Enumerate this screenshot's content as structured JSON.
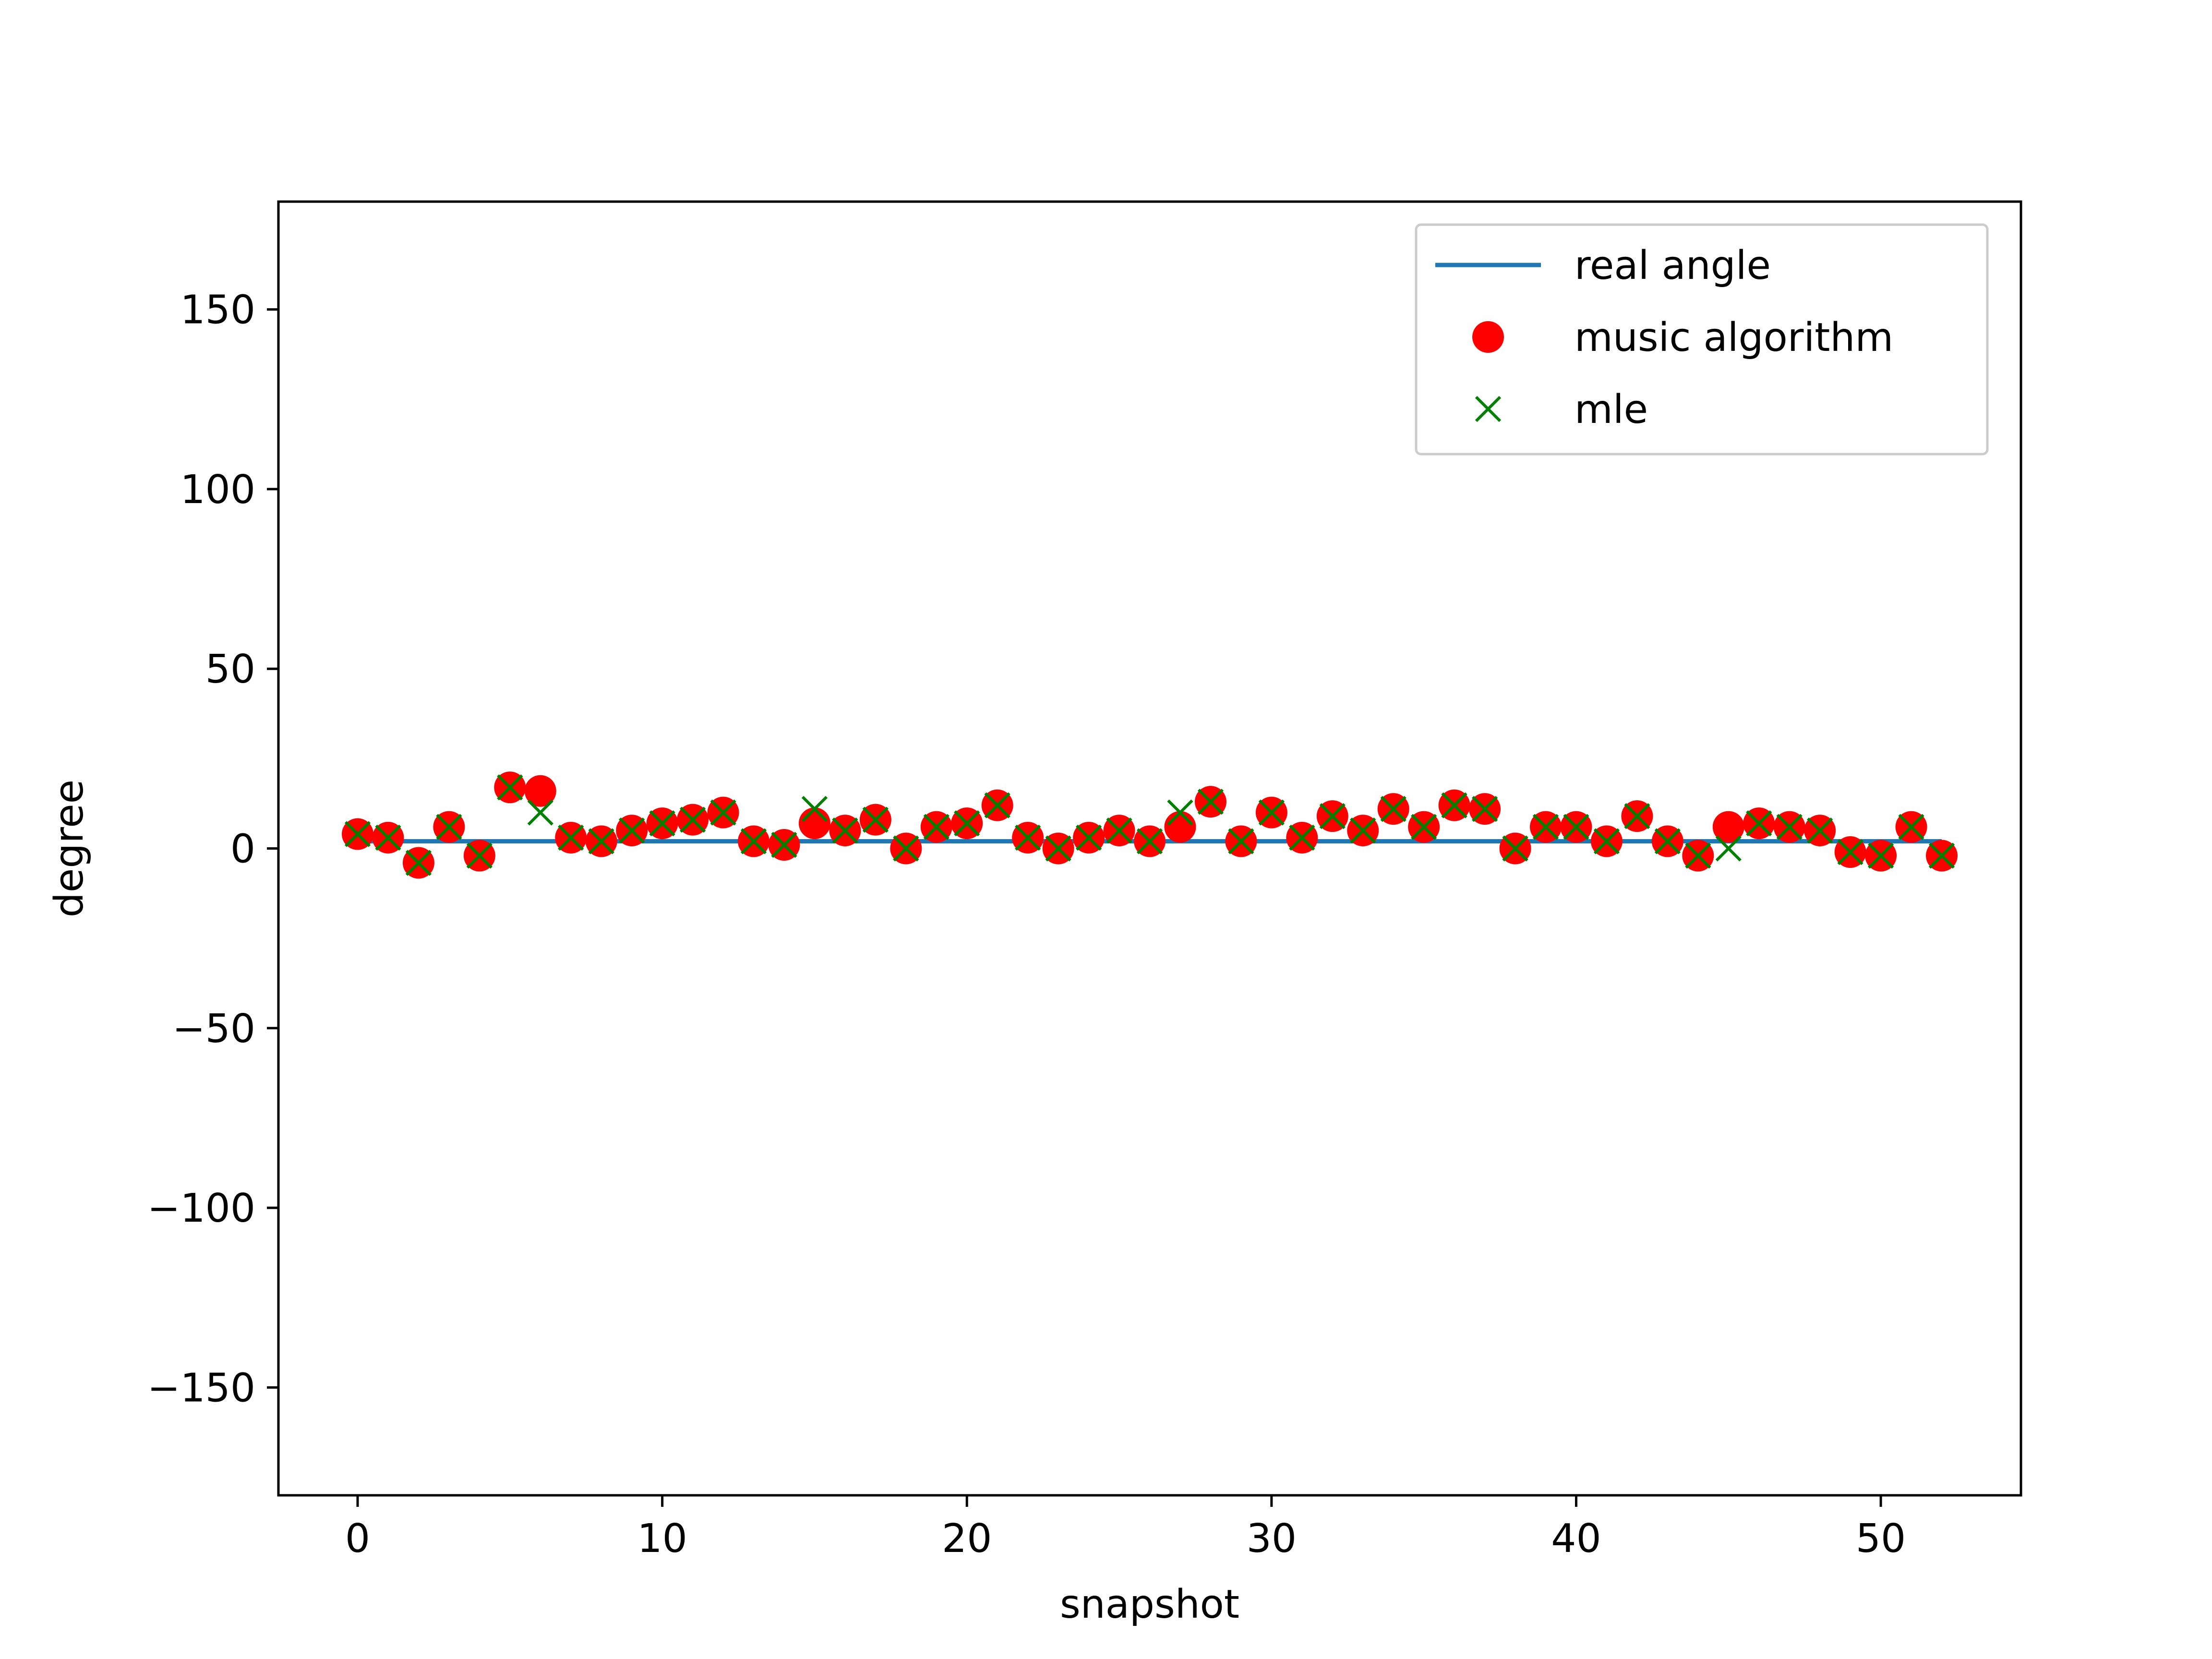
{
  "chart_data": {
    "type": "scatter",
    "title": "",
    "xlabel": "snapshot",
    "ylabel": "degree",
    "xlim": [
      -2.6,
      54.6
    ],
    "ylim": [
      -180,
      180
    ],
    "xticks": [
      0,
      10,
      20,
      30,
      40,
      50
    ],
    "yticks": [
      -150,
      -100,
      -50,
      0,
      50,
      100,
      150
    ],
    "xtick_labels": [
      "0",
      "10",
      "20",
      "30",
      "40",
      "50"
    ],
    "ytick_labels": [
      "−150",
      "−100",
      "−50",
      "0",
      "50",
      "100",
      "150"
    ],
    "grid": false,
    "legend_position": "top-right",
    "series": [
      {
        "name": "real angle",
        "kind": "line",
        "color": "#1f77b4",
        "x": [
          0,
          52
        ],
        "y": [
          2,
          2
        ]
      },
      {
        "name": "music algorithm",
        "kind": "marker-dot",
        "color": "#ff0000",
        "x": [
          0,
          1,
          2,
          3,
          4,
          5,
          6,
          7,
          8,
          9,
          10,
          11,
          12,
          13,
          14,
          15,
          16,
          17,
          18,
          19,
          20,
          21,
          22,
          23,
          24,
          25,
          26,
          27,
          28,
          29,
          30,
          31,
          32,
          33,
          34,
          35,
          36,
          37,
          38,
          39,
          40,
          41,
          42,
          43,
          44,
          45,
          46,
          47,
          48,
          49,
          50,
          51,
          52
        ],
        "y": [
          4,
          3,
          -4,
          6,
          -2,
          17,
          16,
          3,
          2,
          5,
          7,
          8,
          10,
          2,
          1,
          7,
          5,
          8,
          0,
          6,
          7,
          12,
          3,
          0,
          3,
          5,
          2,
          6,
          13,
          2,
          10,
          3,
          9,
          5,
          11,
          6,
          12,
          11,
          0,
          6,
          6,
          2,
          9,
          2,
          -2,
          6,
          7,
          6,
          5,
          -1,
          -2,
          6,
          -2
        ]
      },
      {
        "name": "mle",
        "kind": "marker-x",
        "color": "#008000",
        "x": [
          0,
          1,
          2,
          3,
          4,
          5,
          6,
          7,
          8,
          9,
          10,
          11,
          12,
          13,
          14,
          15,
          16,
          17,
          18,
          19,
          20,
          21,
          22,
          23,
          24,
          25,
          26,
          27,
          28,
          29,
          30,
          31,
          32,
          33,
          34,
          35,
          36,
          37,
          38,
          39,
          40,
          41,
          42,
          43,
          44,
          45,
          46,
          47,
          48,
          49,
          50,
          51,
          52
        ],
        "y": [
          4,
          3,
          -4,
          6,
          -2,
          17,
          10,
          3,
          2,
          5,
          7,
          8,
          10,
          2,
          1,
          11,
          5,
          8,
          0,
          6,
          7,
          12,
          3,
          0,
          3,
          5,
          2,
          10,
          13,
          2,
          10,
          3,
          9,
          5,
          11,
          6,
          12,
          11,
          0,
          6,
          6,
          2,
          9,
          2,
          -2,
          0,
          7,
          6,
          5,
          -1,
          -2,
          6,
          -2
        ]
      }
    ]
  }
}
